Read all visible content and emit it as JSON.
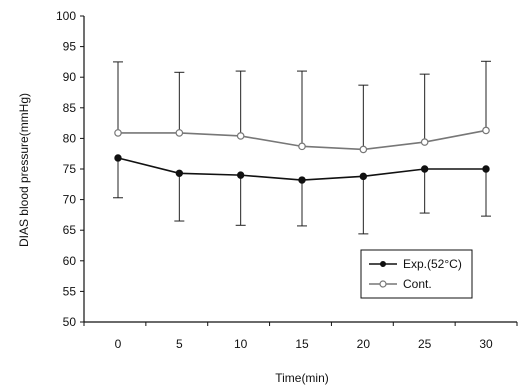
{
  "chart_data": {
    "type": "line",
    "title": "",
    "xlabel": "Time(min)",
    "ylabel": "DIAS blood pressure(mmHg)",
    "x": [
      0,
      5,
      10,
      15,
      20,
      25,
      30
    ],
    "x_ticks": [
      "0",
      "5",
      "10",
      "15",
      "20",
      "25",
      "30"
    ],
    "ylim": [
      50,
      100
    ],
    "y_ticks": [
      "50",
      "55",
      "60",
      "65",
      "70",
      "75",
      "80",
      "85",
      "90",
      "95",
      "100"
    ],
    "grid": false,
    "legend_position": "bottom-right",
    "series": [
      {
        "name": "Exp.(52°C)",
        "values": [
          76.8,
          74.3,
          74.0,
          73.2,
          73.8,
          75.0,
          75.0
        ],
        "error_low": [
          70.3,
          66.5,
          65.8,
          65.7,
          64.4,
          67.8,
          67.3
        ],
        "error_high": [
          null,
          null,
          null,
          null,
          null,
          null,
          null
        ],
        "color": "#111111",
        "marker": "filled-circle"
      },
      {
        "name": "Cont.",
        "values": [
          80.9,
          80.9,
          80.4,
          78.7,
          78.2,
          79.4,
          81.3
        ],
        "error_low": [
          null,
          null,
          null,
          null,
          null,
          null,
          null
        ],
        "error_high": [
          92.5,
          90.8,
          91.0,
          91.0,
          88.7,
          90.5,
          92.6
        ],
        "color": "#777777",
        "marker": "open-circle"
      }
    ]
  }
}
